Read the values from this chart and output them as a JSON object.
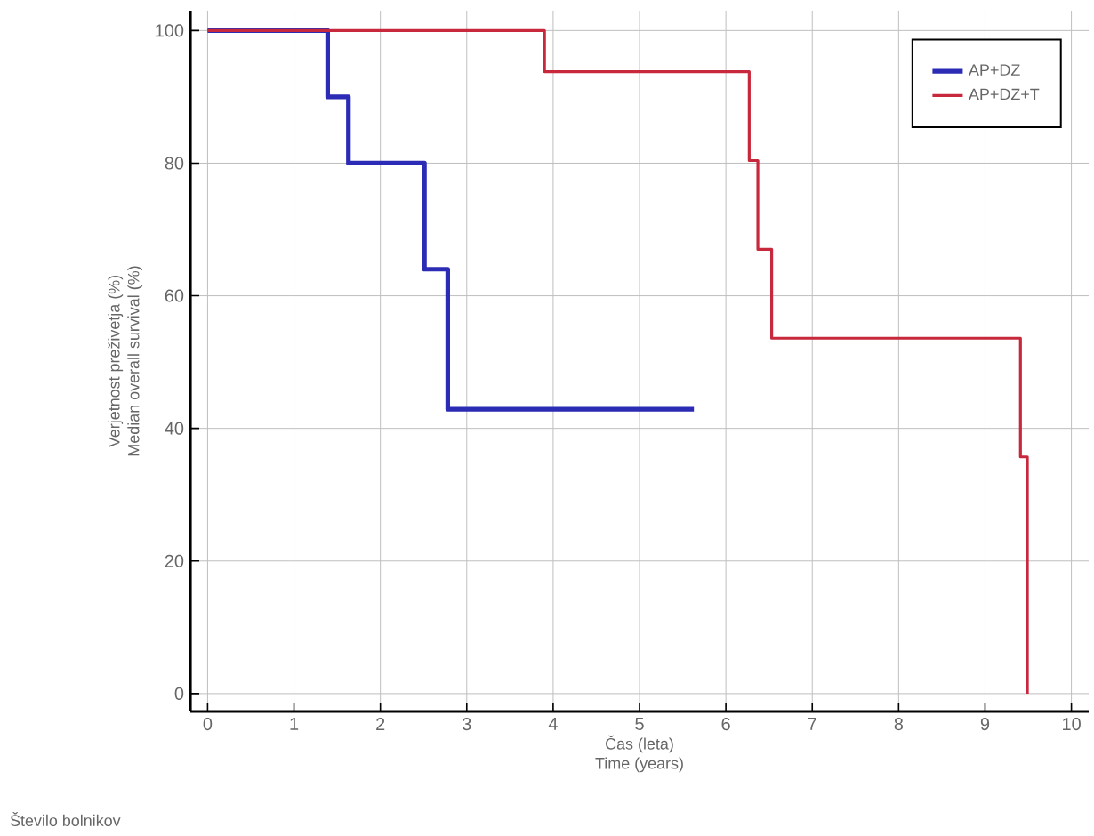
{
  "chart_data": {
    "type": "step",
    "ylabel": "Verjetnost preživetja (%)\nMedian overall survival (%)",
    "xlabel": "Čas (leta)\nTime (years)",
    "series": [
      {
        "name": "AP+DZ",
        "color": "#2b2bb5",
        "x": [
          0,
          1.39,
          1.63,
          2.51,
          2.78,
          5.63
        ],
        "values": [
          100,
          90,
          80,
          64,
          42.9,
          42.9
        ]
      },
      {
        "name": "AP+DZ+T",
        "color": "#c8283c",
        "x": [
          0,
          3.9,
          6.27,
          6.37,
          6.53,
          9.41,
          9.49
        ],
        "values": [
          100,
          93.8,
          80.4,
          67,
          53.6,
          35.7,
          0
        ]
      }
    ],
    "xlim": [
      -0.2,
      10.2
    ],
    "xticks": [
      0,
      1,
      2,
      3,
      4,
      5,
      6,
      7,
      8,
      9,
      10
    ],
    "ylim": [
      -2.7,
      103
    ],
    "yticks": [
      0,
      20,
      40,
      60,
      80,
      100
    ],
    "grid": true,
    "legend": "top right",
    "annotations": [
      "Število bolnikov"
    ]
  }
}
